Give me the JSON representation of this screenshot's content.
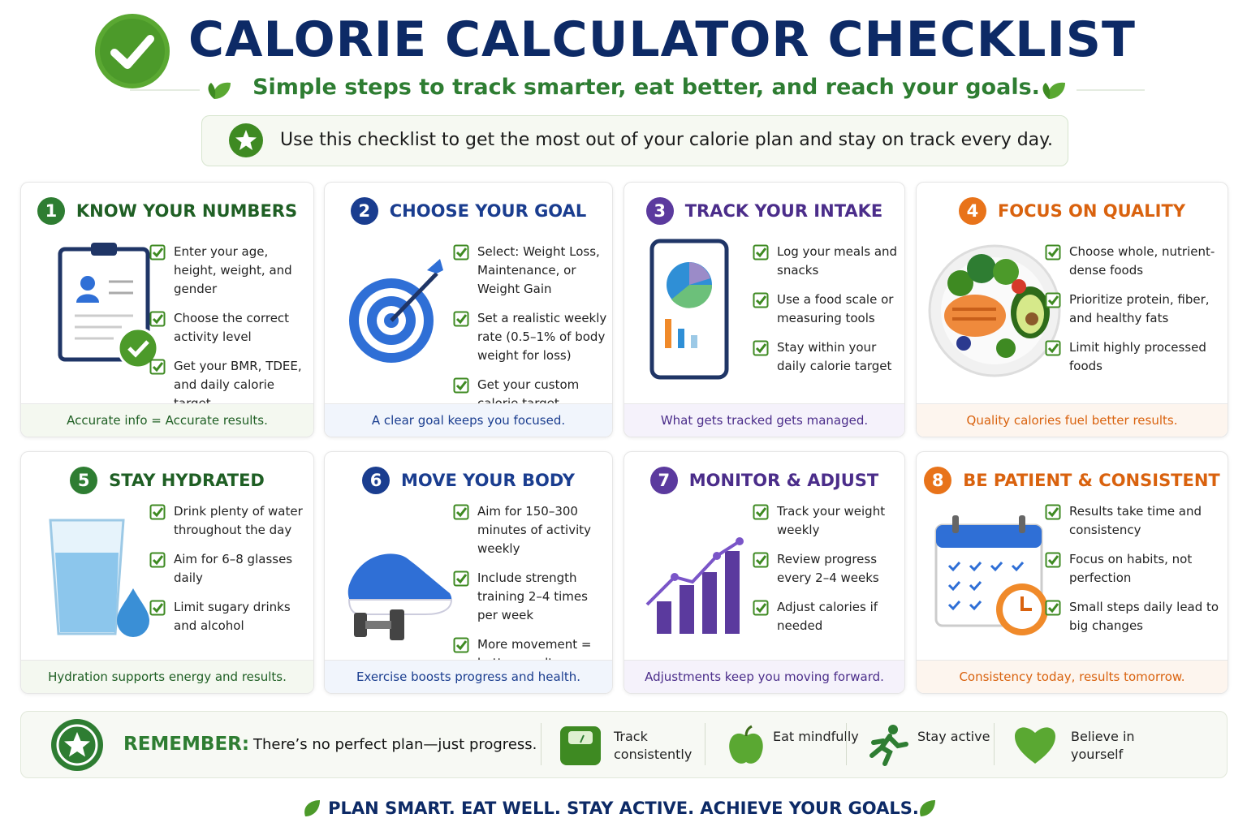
{
  "header": {
    "title": "CALORIE CALCULATOR CHECKLIST",
    "subtitle": "Simple steps to track smarter, eat better, and reach your goals.",
    "intro": "Use this checklist to get the most out of your calorie plan and stay on track every day."
  },
  "cards": [
    {
      "number": 1,
      "title": "KNOW YOUR NUMBERS",
      "items": [
        "Enter your age, height, weight, and gender",
        "Choose the correct activity level",
        "Get your BMR, TDEE, and daily calorie target"
      ],
      "footer": "Accurate info = Accurate results."
    },
    {
      "number": 2,
      "title": "CHOOSE YOUR GOAL",
      "items": [
        "Select: Weight Loss, Maintenance, or Weight Gain",
        "Set a realistic weekly rate (0.5–1% of body weight for loss)",
        "Get your custom calorie target"
      ],
      "footer": "A clear goal keeps you focused."
    },
    {
      "number": 3,
      "title": "TRACK YOUR INTAKE",
      "items": [
        "Log your meals and snacks",
        "Use a food scale or measuring tools",
        "Stay within your daily calorie target"
      ],
      "footer": "What gets tracked gets managed."
    },
    {
      "number": 4,
      "title": "FOCUS ON QUALITY",
      "items": [
        "Choose whole, nutrient-dense foods",
        "Prioritize protein, fiber, and healthy fats",
        "Limit highly processed foods"
      ],
      "footer": "Quality calories fuel better results."
    },
    {
      "number": 5,
      "title": "STAY HYDRATED",
      "items": [
        "Drink plenty of water throughout the day",
        "Aim for 6–8 glasses daily",
        "Limit sugary drinks and alcohol"
      ],
      "footer": "Hydration supports energy and results."
    },
    {
      "number": 6,
      "title": "MOVE YOUR BODY",
      "items": [
        "Aim for 150–300 minutes of activity weekly",
        "Include strength training 2–4 times per week",
        "More movement = better results"
      ],
      "footer": "Exercise boosts progress and health."
    },
    {
      "number": 7,
      "title": "MONITOR & ADJUST",
      "items": [
        "Track your weight weekly",
        "Review progress every 2–4 weeks",
        "Adjust calories if needed"
      ],
      "footer": "Adjustments keep you moving forward."
    },
    {
      "number": 8,
      "title": "BE PATIENT & CONSISTENT",
      "items": [
        "Results take time and consistency",
        "Focus on habits, not perfection",
        "Small steps daily lead to big changes"
      ],
      "footer": "Consistency today, results tomorrow."
    }
  ],
  "remember": {
    "label": "REMEMBER:",
    "text": "There’s no perfect plan—just progress.",
    "tips": [
      "Track consistently",
      "Eat mindfully",
      "Stay active",
      "Believe in yourself"
    ]
  },
  "tagline": "PLAN SMART. EAT WELL. STAY ACTIVE. ACHIEVE YOUR GOALS."
}
